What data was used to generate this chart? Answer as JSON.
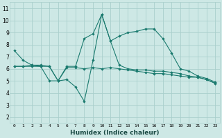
{
  "xlabel": "Humidex (Indice chaleur)",
  "x": [
    0,
    1,
    2,
    3,
    4,
    5,
    6,
    7,
    8,
    9,
    10,
    11,
    12,
    13,
    14,
    15,
    16,
    17,
    18,
    19,
    20,
    21,
    22,
    23
  ],
  "line1": [
    7.5,
    6.7,
    6.3,
    6.3,
    6.2,
    5.0,
    6.2,
    6.2,
    8.5,
    8.9,
    10.5,
    8.3,
    8.7,
    9.0,
    9.1,
    9.3,
    9.3,
    8.5,
    7.3,
    6.0,
    5.8,
    5.4,
    5.2,
    4.9
  ],
  "line2": [
    6.2,
    6.2,
    6.3,
    6.2,
    6.2,
    5.0,
    6.1,
    6.1,
    6.0,
    6.1,
    6.0,
    6.1,
    6.0,
    5.9,
    5.8,
    5.7,
    5.6,
    5.6,
    5.5,
    5.4,
    5.3,
    5.3,
    5.1,
    4.8
  ],
  "line3": [
    6.2,
    6.2,
    6.2,
    6.2,
    5.0,
    5.0,
    5.1,
    4.5,
    3.3,
    6.7,
    10.5,
    8.3,
    6.3,
    6.0,
    5.9,
    5.9,
    5.8,
    5.8,
    5.7,
    5.6,
    5.4,
    5.3,
    5.1,
    4.8
  ],
  "line_color": "#1a7a6e",
  "bg_color": "#cde8e5",
  "grid_color": "#aacfcc",
  "ylim": [
    1.5,
    11.5
  ],
  "yticks": [
    2,
    3,
    4,
    5,
    6,
    7,
    8,
    9,
    10,
    11
  ],
  "xlim": [
    -0.5,
    23.5
  ]
}
